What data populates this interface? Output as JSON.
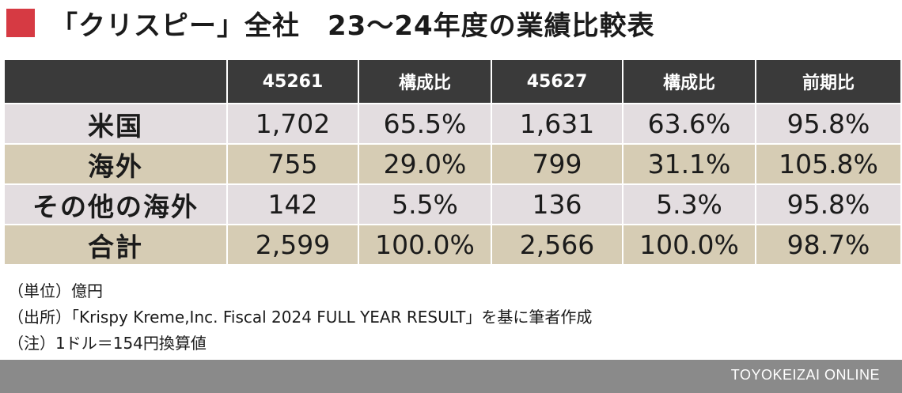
{
  "title": "「クリスピー」全社　23〜24年度の業績比較表",
  "colors": {
    "accent_red": "#d63a43",
    "header_bg": "#3a3a3a",
    "row_light": "#e3dde0",
    "row_tan": "#d6ccb4"
  },
  "chart_data": {
    "type": "table",
    "columns": [
      "",
      "45261",
      "構成比",
      "45627",
      "構成比",
      "前期比"
    ],
    "rows": [
      {
        "label": "米国",
        "values": [
          "1,702",
          "65.5%",
          "1,631",
          "63.6%",
          "95.8%"
        ]
      },
      {
        "label": "海外",
        "values": [
          "755",
          "29.0%",
          "799",
          "31.1%",
          "105.8%"
        ]
      },
      {
        "label": "その他の海外",
        "values": [
          "142",
          "5.5%",
          "136",
          "5.3%",
          "95.8%"
        ]
      },
      {
        "label": "合計",
        "values": [
          "2,599",
          "100.0%",
          "2,566",
          "100.0%",
          "98.7%"
        ]
      }
    ]
  },
  "notes": [
    "（単位）億円",
    "（出所）「Krispy Kreme,Inc. Fiscal 2024 FULL YEAR RESULT」を基に筆者作成",
    "（注）1ドル＝154円換算値"
  ],
  "footer": {
    "brand": "TOYOKEIZAI ONLINE"
  }
}
